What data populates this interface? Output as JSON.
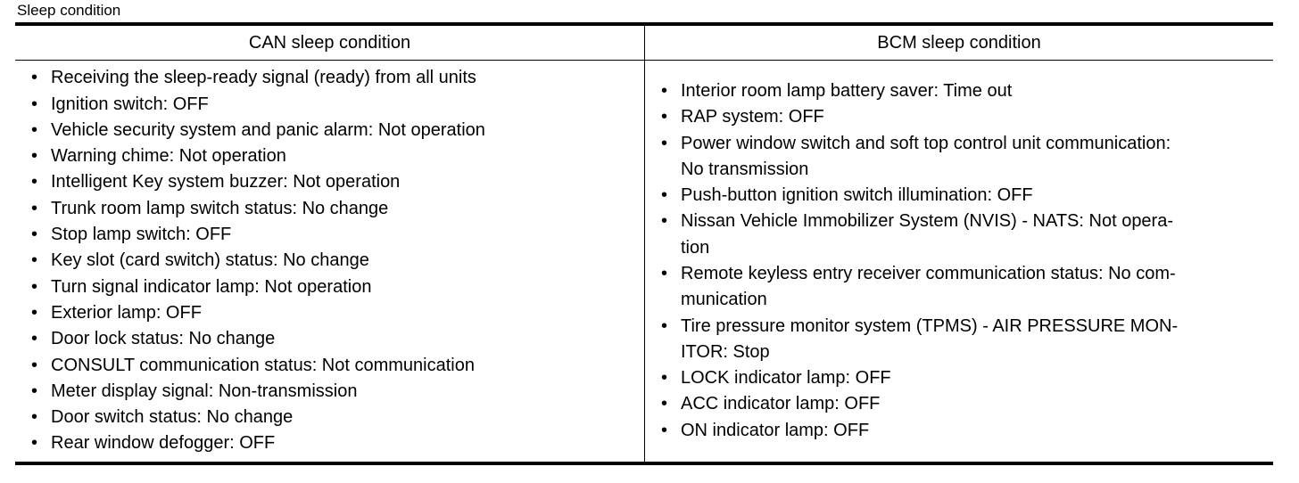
{
  "title": "Sleep condition",
  "columns": [
    "CAN sleep condition",
    "BCM sleep condition"
  ],
  "can_items": [
    [
      "Receiving the sleep-ready signal (ready) from all units"
    ],
    [
      "Ignition switch: OFF"
    ],
    [
      "Vehicle security system and panic alarm: Not operation"
    ],
    [
      "Warning chime: Not operation"
    ],
    [
      "Intelligent Key system buzzer: Not operation"
    ],
    [
      "Trunk room lamp switch status: No change"
    ],
    [
      "Stop lamp switch: OFF"
    ],
    [
      "Key slot (card switch) status: No change"
    ],
    [
      "Turn signal indicator lamp: Not operation"
    ],
    [
      "Exterior lamp: OFF"
    ],
    [
      "Door lock status: No change"
    ],
    [
      "CONSULT communication status: Not communication"
    ],
    [
      "Meter display signal: Non-transmission"
    ],
    [
      "Door switch status: No change"
    ],
    [
      "Rear window defogger: OFF"
    ]
  ],
  "bcm_items": [
    [
      "Interior room lamp battery saver: Time out"
    ],
    [
      "RAP system: OFF"
    ],
    [
      "Power window switch and soft top control unit communication:",
      "No transmission"
    ],
    [
      "Push-button ignition switch illumination: OFF"
    ],
    [
      "Nissan Vehicle Immobilizer System (NVIS) - NATS: Not opera-",
      "tion"
    ],
    [
      "Remote keyless entry receiver communication status: No com-",
      "munication"
    ],
    [
      "Tire pressure monitor system (TPMS) - AIR PRESSURE MON-",
      "ITOR: Stop"
    ],
    [
      "LOCK indicator lamp: OFF"
    ],
    [
      "ACC indicator lamp: OFF"
    ],
    [
      "ON indicator lamp: OFF"
    ]
  ],
  "bullet": "•"
}
